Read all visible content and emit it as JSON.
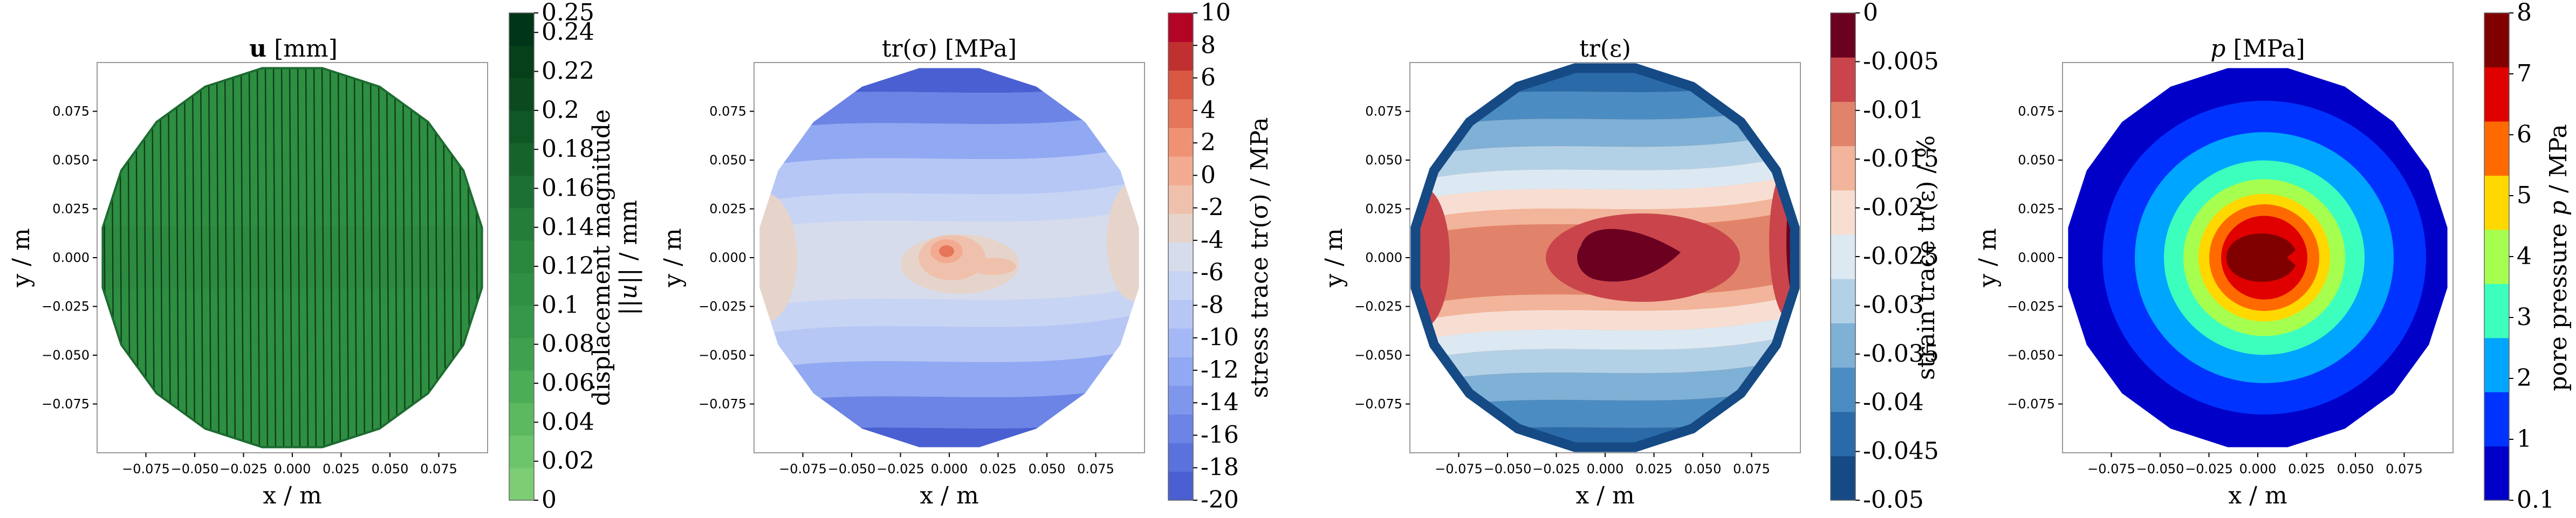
{
  "chart_data": [
    {
      "type": "heatmap",
      "title_bold": "u",
      "title_rest": " [mm]",
      "xlabel": "x / m",
      "ylabel": "y / m",
      "xticks": [
        "−0.075",
        "−0.050",
        "−0.025",
        "0.000",
        "0.025",
        "0.050",
        "0.075"
      ],
      "yticks": [
        "0.075",
        "0.050",
        "0.025",
        "0.000",
        "−0.025",
        "−0.050",
        "−0.075"
      ],
      "xlim": [
        -0.1,
        0.1
      ],
      "ylim": [
        -0.1,
        0.1
      ],
      "colorbar_label": "displacement magnitude ||u|| / mm",
      "colorbar_ticks": [
        "0.25",
        "0.24",
        "0.22",
        "0.2",
        "0.18",
        "0.16",
        "0.14",
        "0.12",
        "0.1",
        "0.08",
        "0.06",
        "0.04",
        "0.02",
        "0"
      ],
      "colorbar_range": [
        0,
        0.25
      ],
      "colors": [
        "#7ccd73",
        "#6cc56a",
        "#5cb960",
        "#4cad57",
        "#3fa14f",
        "#359849",
        "#2f8f43",
        "#2a873e",
        "#247d39",
        "#1d7033",
        "#17632c",
        "#105726",
        "#0a4a1e",
        "#05401a",
        "#00351a"
      ],
      "fill_color": "#2e8e42",
      "arrows": "vertical displacement arrows"
    },
    {
      "type": "heatmap",
      "title": "tr(σ) [MPa]",
      "xlabel": "x / m",
      "ylabel": "y / m",
      "xticks": [
        "−0.075",
        "−0.050",
        "−0.025",
        "0.000",
        "0.025",
        "0.050",
        "0.075"
      ],
      "yticks": [
        "0.075",
        "0.050",
        "0.025",
        "0.000",
        "−0.025",
        "−0.050",
        "−0.075"
      ],
      "xlim": [
        -0.1,
        0.1
      ],
      "ylim": [
        -0.1,
        0.1
      ],
      "colorbar_label": "stress trace tr(σ) / MPa",
      "colorbar_ticks": [
        "10",
        "8",
        "6",
        "4",
        "2",
        "0",
        "-2",
        "-4",
        "-6",
        "-8",
        "-10",
        "-12",
        "-14",
        "-16",
        "-18",
        "-20"
      ],
      "colorbar_range": [
        -20,
        10
      ],
      "colors": [
        "#4a5fd1",
        "#5a72dc",
        "#6c84e5",
        "#7e96ec",
        "#91a8f2",
        "#a4b8f5",
        "#b6c7f6",
        "#c8d4f3",
        "#d6dcec",
        "#e6d4cb",
        "#efc1ac",
        "#f2ab90",
        "#ee9273",
        "#e57659",
        "#d85844",
        "#c03030",
        "#b40426"
      ]
    },
    {
      "type": "heatmap",
      "title": "tr(ε)",
      "xlabel": "x / m",
      "ylabel": "y / m",
      "xticks": [
        "−0.075",
        "−0.050",
        "−0.025",
        "0.000",
        "0.025",
        "0.050",
        "0.075"
      ],
      "yticks": [
        "0.075",
        "0.050",
        "0.025",
        "0.000",
        "−0.025",
        "−0.050",
        "−0.075"
      ],
      "xlim": [
        -0.1,
        0.1
      ],
      "ylim": [
        -0.1,
        0.1
      ],
      "colorbar_label": "strain trace tr(ε) / %",
      "colorbar_ticks": [
        "0",
        "-0.005",
        "-0.01",
        "-0.015",
        "-0.02",
        "-0.025",
        "-0.03",
        "-0.035",
        "-0.04",
        "-0.045",
        "-0.05"
      ],
      "colorbar_range": [
        -0.05,
        0
      ],
      "colors": [
        "#154a85",
        "#2a6aa8",
        "#4b8dc2",
        "#7fb0d5",
        "#b3d1e6",
        "#dde9f2",
        "#f8ded2",
        "#f2b49a",
        "#e1836a",
        "#c9454b",
        "#6b0020"
      ]
    },
    {
      "type": "heatmap",
      "title_italic": "p",
      "title_rest": " [MPa]",
      "xlabel": "x / m",
      "ylabel": "y / m",
      "xticks": [
        "−0.075",
        "−0.050",
        "−0.025",
        "0.000",
        "0.025",
        "0.050",
        "0.075"
      ],
      "yticks": [
        "0.075",
        "0.050",
        "0.025",
        "0.000",
        "−0.025",
        "−0.050",
        "−0.075"
      ],
      "xlim": [
        -0.1,
        0.1
      ],
      "ylim": [
        -0.1,
        0.1
      ],
      "colorbar_label": "pore pressure p / MPa",
      "colorbar_ticks": [
        "8",
        "7",
        "6",
        "5",
        "4",
        "3",
        "2",
        "1",
        "0.1"
      ],
      "colorbar_range": [
        0.1,
        8
      ],
      "colors": [
        "#0000c8",
        "#0033ff",
        "#00a5ff",
        "#3cffbe",
        "#a6ff4f",
        "#ffd800",
        "#ff6a00",
        "#e00000",
        "#800000"
      ]
    }
  ]
}
